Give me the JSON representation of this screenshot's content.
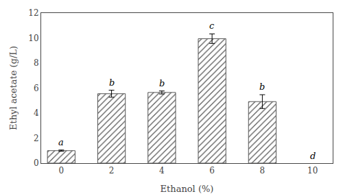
{
  "chart_data": {
    "type": "bar",
    "x": [
      0,
      2,
      4,
      6,
      8
    ],
    "values": [
      1.0,
      5.55,
      5.65,
      9.95,
      4.92
    ],
    "errors": [
      0.05,
      0.28,
      0.12,
      0.38,
      0.55
    ],
    "letters": [
      "a",
      "b",
      "b",
      "c",
      "b"
    ],
    "annotations": [
      {
        "x": 10,
        "text": "d"
      }
    ],
    "color": "#e8e8e8",
    "xlabel": "Ethanol (%)",
    "ylabel": "Ethyl acetate (g/L)",
    "xlim": [
      -0.8,
      10.8
    ],
    "ylim": [
      0,
      12
    ],
    "xticks": [
      0,
      2,
      4,
      6,
      8,
      10
    ],
    "yticks": [
      0,
      2,
      4,
      6,
      8,
      10,
      12
    ],
    "grid": false
  }
}
